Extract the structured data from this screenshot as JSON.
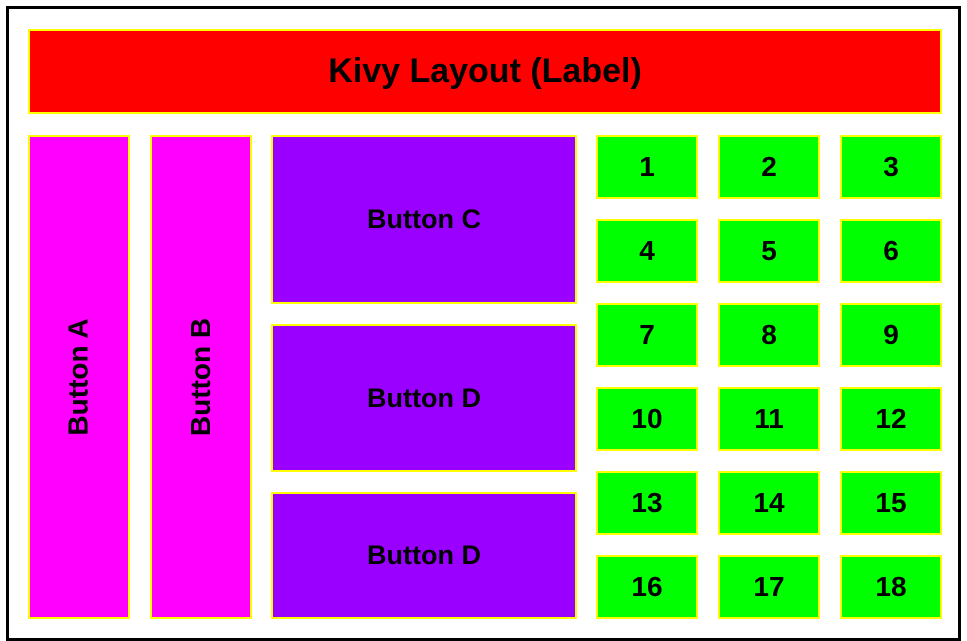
{
  "header": {
    "title": "Kivy Layout (Label)"
  },
  "left_buttons": {
    "a_label": "Button A",
    "b_label": "Button B"
  },
  "middle_buttons": {
    "c_label": "Button C",
    "d1_label": "Button D",
    "d2_label": "Button D"
  },
  "grid": {
    "labels": [
      "1",
      "2",
      "3",
      "4",
      "5",
      "6",
      "7",
      "8",
      "9",
      "10",
      "11",
      "12",
      "13",
      "14",
      "15",
      "16",
      "17",
      "18"
    ]
  },
  "colors": {
    "label_bg": "#ff0000",
    "side_buttons_bg": "#ff00ff",
    "middle_buttons_bg": "#9900ff",
    "grid_buttons_bg": "#00ff00",
    "borders": "#ffff00"
  }
}
